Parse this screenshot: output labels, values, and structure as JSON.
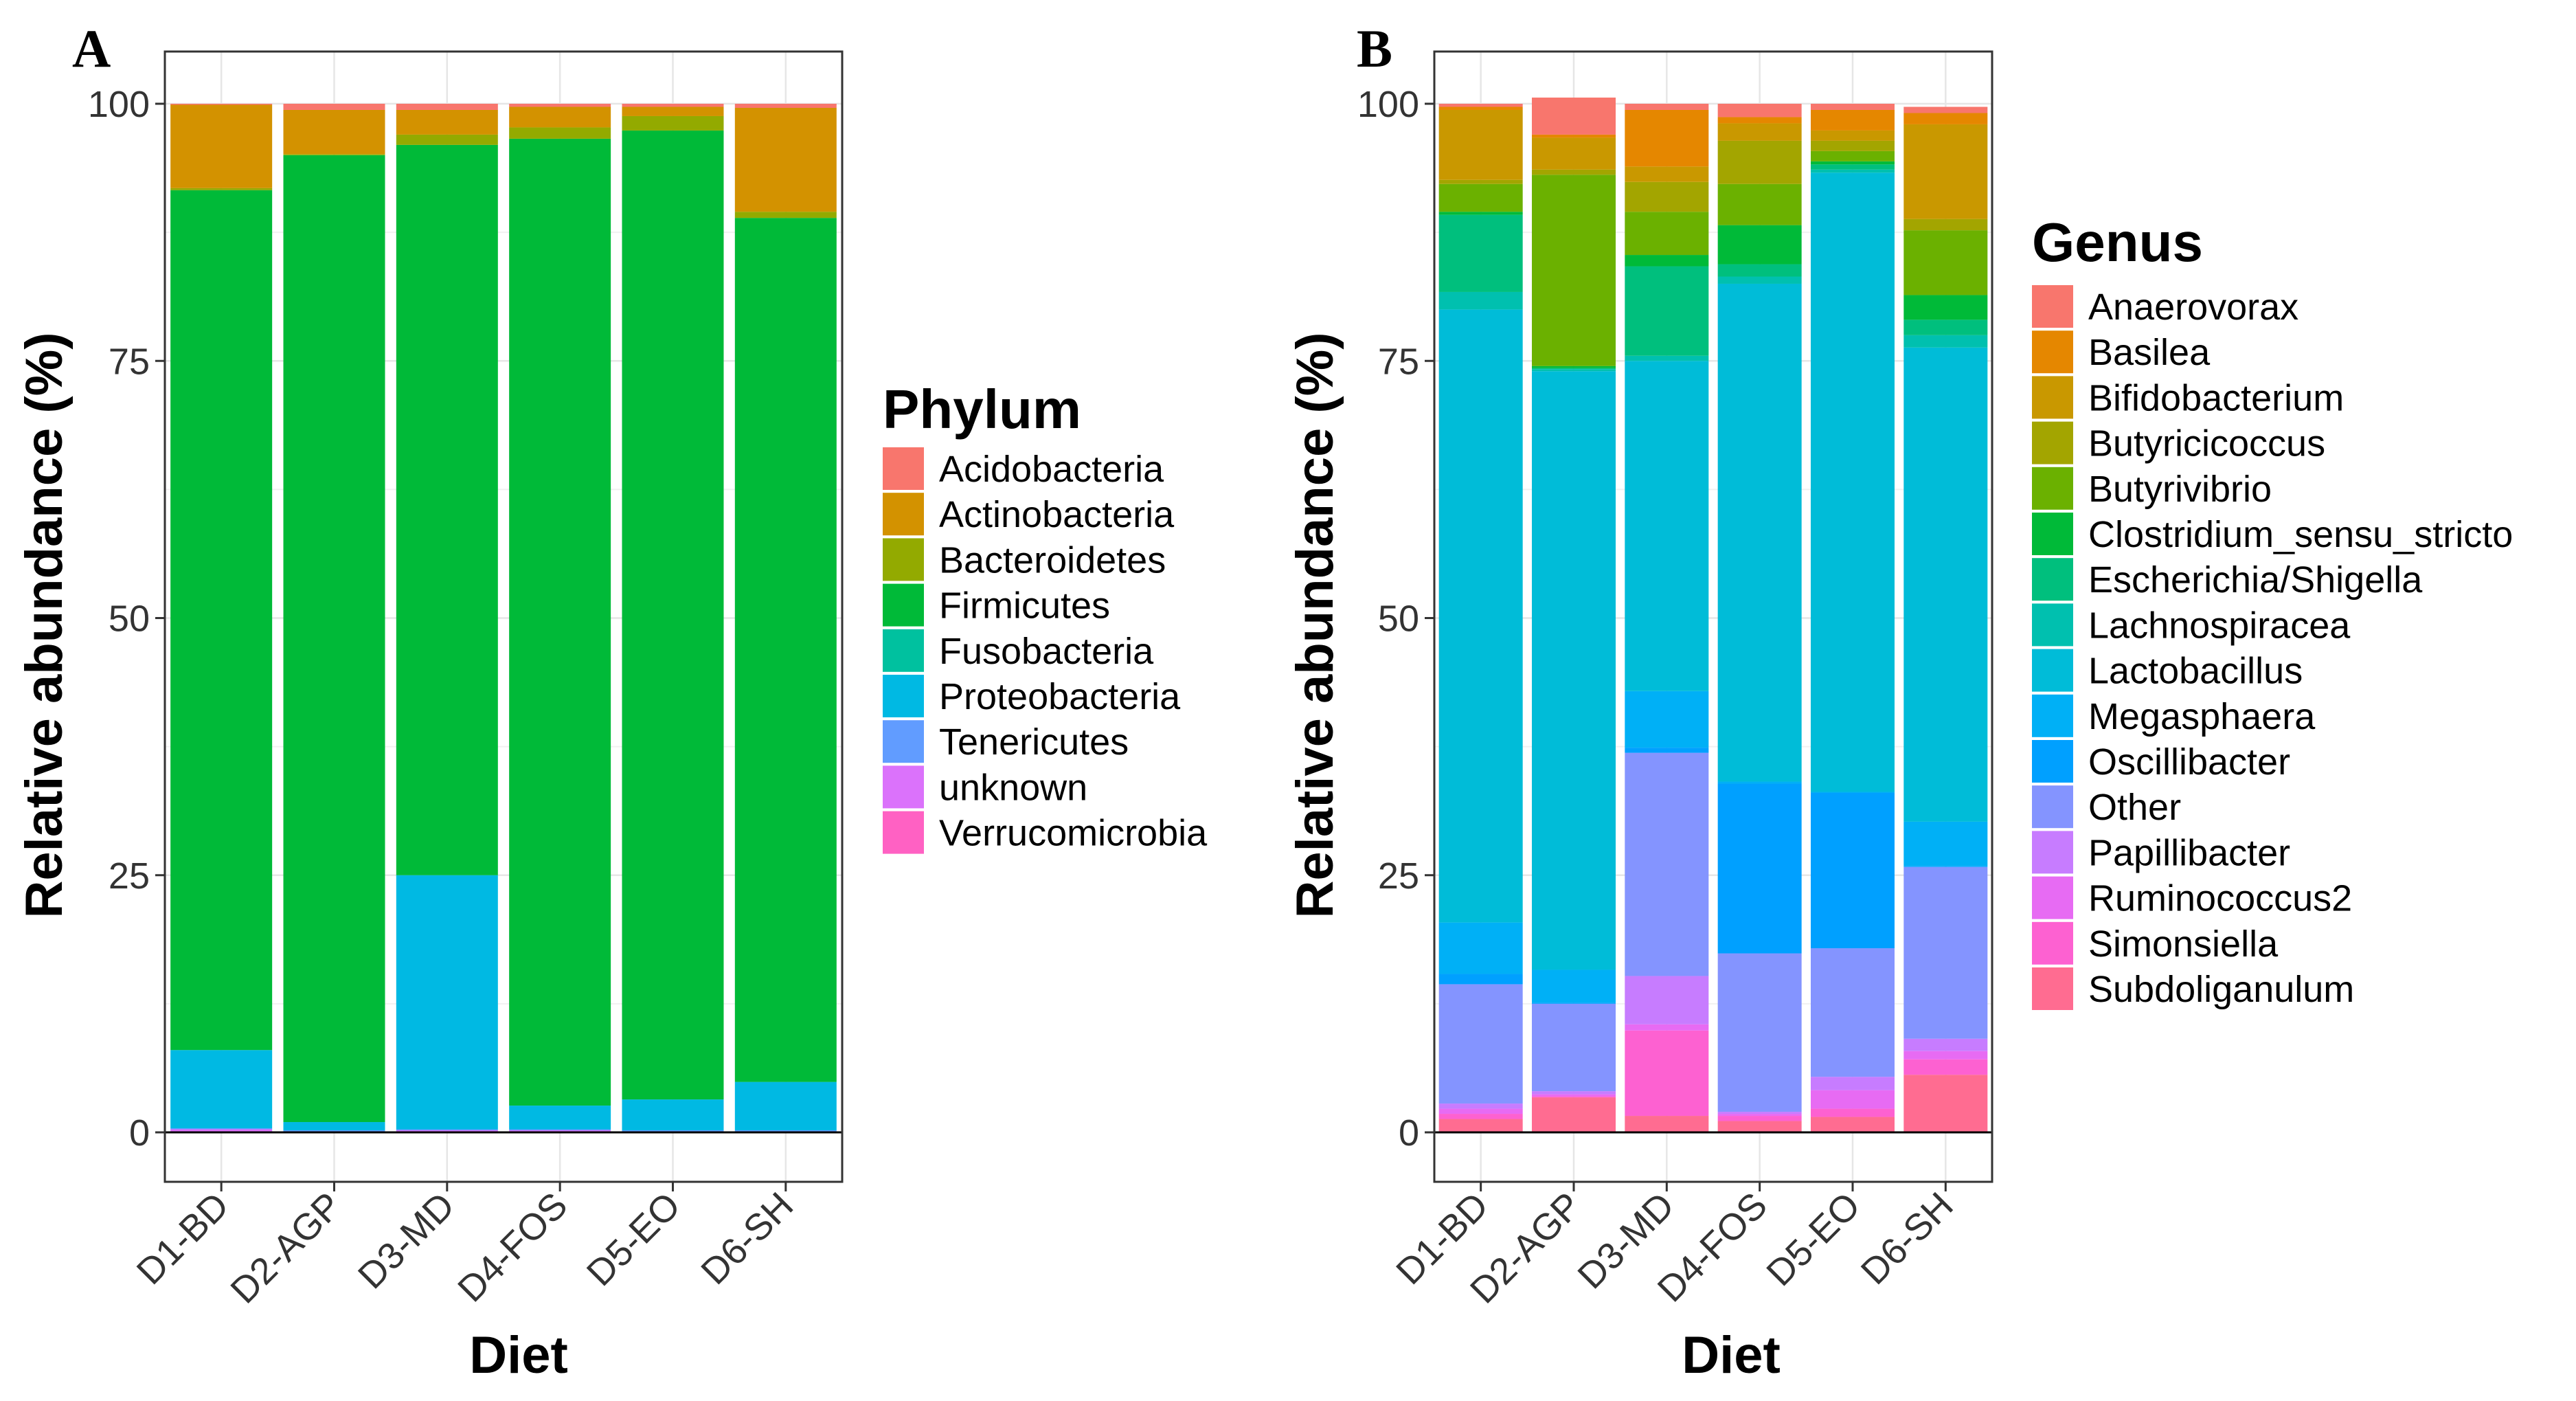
{
  "chart_data": [
    {
      "panel_label": "A",
      "type": "bar",
      "stacked": true,
      "xlabel": "Diet",
      "ylabel": "Relative abundance (%)",
      "ylim": [
        0,
        100
      ],
      "yticks": [
        "0",
        "25",
        "50",
        "75",
        "100"
      ],
      "grid": true,
      "legend_position": "right",
      "legend_title": "Phylum",
      "categories": [
        "D1-BD",
        "D2-AGP",
        "D3-MD",
        "D4-FOS",
        "D5-EO",
        "D6-SH"
      ],
      "series": [
        {
          "name": "Acidobacteria",
          "color": "#F8766D",
          "values": [
            0.1,
            0.6,
            0.6,
            0.3,
            0.3,
            0.4
          ]
        },
        {
          "name": "Actinobacteria",
          "color": "#D39200",
          "values": [
            8.1,
            4.3,
            2.4,
            2.0,
            0.9,
            10.1
          ]
        },
        {
          "name": "Bacteroidetes",
          "color": "#93AA00",
          "values": [
            0.2,
            0.1,
            1.0,
            1.1,
            1.4,
            0.6
          ]
        },
        {
          "name": "Firmicutes",
          "color": "#00BA38",
          "values": [
            83.6,
            94.0,
            71.0,
            94.0,
            94.2,
            84.0
          ]
        },
        {
          "name": "Fusobacteria",
          "color": "#00C19F",
          "values": [
            0.0,
            0.0,
            0.0,
            0.0,
            0.0,
            0.0
          ]
        },
        {
          "name": "Proteobacteria",
          "color": "#00B9E3",
          "values": [
            7.6,
            0.8,
            24.7,
            2.3,
            3.0,
            4.7
          ]
        },
        {
          "name": "Tenericutes",
          "color": "#619CFF",
          "values": [
            0.1,
            0.1,
            0.1,
            0.1,
            0.1,
            0.1
          ]
        },
        {
          "name": "unknown",
          "color": "#DB72FB",
          "values": [
            0.2,
            0.0,
            0.1,
            0.1,
            0.0,
            0.0
          ]
        },
        {
          "name": "Verrucomicrobia",
          "color": "#FF61C3",
          "values": [
            0.1,
            0.1,
            0.1,
            0.1,
            0.1,
            0.1
          ]
        }
      ]
    },
    {
      "panel_label": "B",
      "type": "bar",
      "stacked": true,
      "xlabel": "Diet",
      "ylabel": "Relative abundance (%)",
      "ylim": [
        0,
        100
      ],
      "yticks": [
        "0",
        "25",
        "50",
        "75",
        "100"
      ],
      "grid": true,
      "legend_position": "right",
      "legend_title": "Genus",
      "categories": [
        "D1-BD",
        "D2-AGP",
        "D3-MD",
        "D4-FOS",
        "D5-EO",
        "D6-SH"
      ],
      "series": [
        {
          "name": "Anaerovorax",
          "color": "#F8766D",
          "values": [
            0.3,
            3.6,
            0.6,
            1.3,
            0.6,
            0.6
          ]
        },
        {
          "name": "Basilea",
          "color": "#E58700",
          "values": [
            0.3,
            0.3,
            5.5,
            0.6,
            2.0,
            1.1
          ]
        },
        {
          "name": "Bifidobacterium",
          "color": "#C99800",
          "values": [
            6.8,
            3.1,
            1.5,
            1.7,
            1.0,
            9.2
          ]
        },
        {
          "name": "Butyricicoccus",
          "color": "#A3A500",
          "values": [
            0.4,
            0.5,
            2.9,
            4.2,
            1.0,
            1.1
          ]
        },
        {
          "name": "Butyrivibrio",
          "color": "#6BB100",
          "values": [
            2.7,
            18.6,
            4.2,
            4.0,
            1.0,
            6.3
          ]
        },
        {
          "name": "Clostridium_sensu_stricto",
          "color": "#00BA38",
          "values": [
            0.3,
            0.2,
            1.1,
            3.8,
            0.3,
            2.4
          ]
        },
        {
          "name": "Escherichia/Shigella",
          "color": "#00BF7D",
          "values": [
            7.5,
            0.1,
            8.7,
            1.2,
            0.5,
            1.5
          ]
        },
        {
          "name": "Lachnospiracea",
          "color": "#00C0AF",
          "values": [
            1.7,
            0.2,
            0.5,
            0.7,
            0.3,
            1.2
          ]
        },
        {
          "name": "Lactobacillus",
          "color": "#00BCD8",
          "values": [
            59.6,
            58.2,
            32.1,
            48.4,
            60.2,
            46.1
          ]
        },
        {
          "name": "Megasphaera",
          "color": "#00B0F6",
          "values": [
            5.0,
            3.2,
            5.5,
            0.2,
            0.1,
            4.3
          ]
        },
        {
          "name": "Oscillibacter",
          "color": "#00A0FF",
          "values": [
            1.0,
            0.1,
            0.5,
            16.5,
            15.1,
            0.1
          ]
        },
        {
          "name": "Other",
          "color": "#8494FF",
          "values": [
            11.6,
            8.5,
            21.7,
            15.4,
            12.5,
            16.7
          ]
        },
        {
          "name": "Papillibacter",
          "color": "#C77CFF",
          "values": [
            0.5,
            0.3,
            4.7,
            0.2,
            1.3,
            1.2
          ]
        },
        {
          "name": "Ruminococcus2",
          "color": "#E76BF3",
          "values": [
            0.5,
            0.2,
            0.6,
            0.2,
            1.8,
            0.8
          ]
        },
        {
          "name": "Simonsiella",
          "color": "#FD61D1",
          "values": [
            0.5,
            0.1,
            8.3,
            0.5,
            0.8,
            1.5
          ]
        },
        {
          "name": "Subdoliganulum",
          "color": "#FF6C91",
          "values": [
            1.3,
            3.4,
            1.6,
            1.1,
            1.5,
            5.6
          ]
        }
      ]
    }
  ]
}
